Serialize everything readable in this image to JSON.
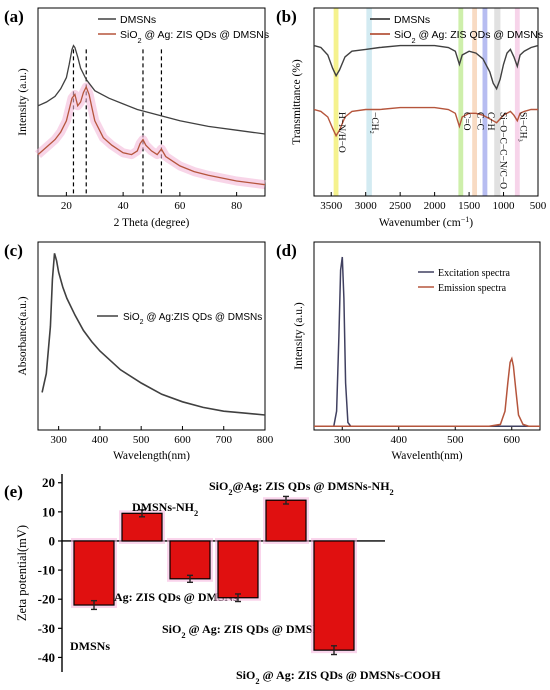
{
  "chart_data": [
    {
      "panel": "(a)",
      "type": "line",
      "title": "",
      "xlabel": "2 Theta (degree)",
      "ylabel": "Intensity (a.u.)",
      "xlim": [
        10,
        90
      ],
      "ylim": [
        0,
        1
      ],
      "xticks": [
        20,
        40,
        60,
        80
      ],
      "grid": false,
      "legend": "top-right",
      "dashed_lines_x": [
        22.5,
        27,
        47,
        53.5
      ],
      "series": [
        {
          "name": "DMSNs",
          "color": "#404040",
          "x": [
            10,
            13,
            16,
            18,
            20,
            21,
            22,
            22.5,
            23,
            24,
            25,
            27,
            30,
            35,
            40,
            45,
            50,
            55,
            60,
            70,
            80,
            90
          ],
          "y": [
            0.48,
            0.5,
            0.53,
            0.57,
            0.63,
            0.7,
            0.78,
            0.8,
            0.79,
            0.74,
            0.68,
            0.62,
            0.56,
            0.52,
            0.49,
            0.46,
            0.44,
            0.42,
            0.4,
            0.37,
            0.35,
            0.33
          ]
        },
        {
          "name": "SiO2 @ Ag: ZIS QDs @ DMSNs",
          "color": "#b5553c",
          "x": [
            10,
            13,
            16,
            18,
            20,
            21,
            22,
            23,
            24,
            25,
            26,
            27,
            28,
            29,
            30,
            33,
            36,
            40,
            43,
            45,
            46,
            47,
            48,
            50,
            52,
            53.5,
            55,
            58,
            60,
            65,
            70,
            80,
            90
          ],
          "y": [
            0.22,
            0.26,
            0.3,
            0.34,
            0.4,
            0.46,
            0.52,
            0.54,
            0.48,
            0.5,
            0.55,
            0.58,
            0.54,
            0.47,
            0.4,
            0.31,
            0.27,
            0.23,
            0.22,
            0.24,
            0.28,
            0.3,
            0.27,
            0.24,
            0.22,
            0.25,
            0.21,
            0.18,
            0.16,
            0.13,
            0.11,
            0.08,
            0.06
          ]
        }
      ]
    },
    {
      "panel": "(b)",
      "type": "line",
      "title": "",
      "xlabel": "Wavenumber (cm",
      "xlabel_sup": "−1",
      "xlabel_end": ")",
      "ylabel": "Transmittance (%)",
      "xlim": [
        3750,
        500
      ],
      "ylim": [
        0,
        1
      ],
      "xticks": [
        3500,
        3000,
        2500,
        2000,
        1500,
        1000,
        500
      ],
      "grid": false,
      "legend": "top-left",
      "bands": [
        {
          "center": 3430,
          "width": 70,
          "color": "#f3f07a",
          "label": "H−N/H−O"
        },
        {
          "center": 2950,
          "width": 80,
          "color": "#cbe8f0",
          "label": "−CH₂"
        },
        {
          "center": 1620,
          "width": 70,
          "color": "#c5ec9c",
          "label": "C=O"
        },
        {
          "center": 1420,
          "width": 70,
          "color": "#f7d5b8",
          "label": "C−C"
        },
        {
          "center": 1270,
          "width": 70,
          "color": "#aab2ee",
          "label": "C−H"
        },
        {
          "center": 1090,
          "width": 90,
          "color": "#dcdcdc",
          "label": "Si−O−C−C−N/C−O"
        },
        {
          "center": 800,
          "width": 70,
          "color": "#f6cde6",
          "label": "Si−CH₃"
        }
      ],
      "series": [
        {
          "name": "DMSNs",
          "color": "#404040",
          "x": [
            3750,
            3650,
            3550,
            3480,
            3430,
            3380,
            3300,
            3200,
            3000,
            2800,
            2500,
            2000,
            1800,
            1700,
            1640,
            1600,
            1500,
            1400,
            1300,
            1200,
            1150,
            1100,
            1050,
            1000,
            950,
            900,
            850,
            800,
            760,
            700,
            600,
            500
          ],
          "y": [
            0.8,
            0.79,
            0.75,
            0.68,
            0.64,
            0.67,
            0.74,
            0.77,
            0.78,
            0.79,
            0.8,
            0.8,
            0.79,
            0.77,
            0.7,
            0.75,
            0.77,
            0.76,
            0.73,
            0.66,
            0.6,
            0.57,
            0.62,
            0.7,
            0.76,
            0.78,
            0.74,
            0.69,
            0.75,
            0.77,
            0.79,
            0.8
          ]
        },
        {
          "name": "SiO2 @ Ag: ZIS QDs @ DMSNs",
          "color": "#b5553c",
          "x": [
            3750,
            3650,
            3550,
            3480,
            3430,
            3380,
            3300,
            3200,
            3000,
            2800,
            2500,
            2000,
            1800,
            1700,
            1640,
            1600,
            1500,
            1400,
            1300,
            1200,
            1150,
            1100,
            1050,
            1000,
            950,
            900,
            850,
            800,
            760,
            700,
            600,
            500
          ],
          "y": [
            0.46,
            0.45,
            0.42,
            0.36,
            0.32,
            0.35,
            0.42,
            0.45,
            0.46,
            0.46,
            0.47,
            0.47,
            0.46,
            0.44,
            0.37,
            0.42,
            0.44,
            0.44,
            0.43,
            0.41,
            0.4,
            0.39,
            0.41,
            0.43,
            0.44,
            0.45,
            0.43,
            0.4,
            0.44,
            0.45,
            0.46,
            0.46
          ]
        }
      ]
    },
    {
      "panel": "(c)",
      "type": "line",
      "title": "",
      "xlabel": "Wavelength(nm)",
      "ylabel": "Absorbance(a.u.)",
      "xlim": [
        250,
        800
      ],
      "ylim": [
        0,
        1
      ],
      "xticks": [
        300,
        400,
        500,
        600,
        700,
        800
      ],
      "grid": false,
      "legend": "middle-right",
      "series": [
        {
          "name": "SiO2 @ Ag:ZIS QDs @ DMSNs",
          "color": "#404040",
          "x": [
            260,
            270,
            280,
            285,
            290,
            295,
            300,
            310,
            320,
            340,
            360,
            380,
            400,
            450,
            500,
            550,
            600,
            650,
            700,
            750,
            800
          ],
          "y": [
            0.2,
            0.3,
            0.55,
            0.8,
            0.94,
            0.9,
            0.84,
            0.76,
            0.7,
            0.61,
            0.53,
            0.47,
            0.42,
            0.32,
            0.25,
            0.19,
            0.15,
            0.12,
            0.1,
            0.09,
            0.08
          ]
        }
      ]
    },
    {
      "panel": "(d)",
      "type": "line",
      "title": "",
      "xlabel": "Wavelenth(nm)",
      "ylabel": "Intensity (a.u.)",
      "xlim": [
        250,
        650
      ],
      "ylim": [
        0,
        1
      ],
      "xticks": [
        300,
        400,
        500,
        600
      ],
      "grid": false,
      "legend": "top-right",
      "series": [
        {
          "name": "Excitation spectra",
          "color": "#404060",
          "x": [
            250,
            285,
            290,
            294,
            297,
            300,
            303,
            306,
            310,
            315,
            350,
            400,
            450,
            500,
            550,
            570,
            580,
            650
          ],
          "y": [
            0.02,
            0.02,
            0.1,
            0.5,
            0.85,
            0.92,
            0.7,
            0.25,
            0.04,
            0.02,
            0.02,
            0.02,
            0.02,
            0.02,
            0.02,
            0.02,
            0.02,
            0.02
          ]
        },
        {
          "name": "Emission spectra",
          "color": "#b5553c",
          "x": [
            250,
            300,
            400,
            500,
            560,
            580,
            588,
            593,
            597,
            600,
            603,
            607,
            612,
            620,
            630,
            650
          ],
          "y": [
            0.02,
            0.02,
            0.02,
            0.02,
            0.02,
            0.03,
            0.1,
            0.25,
            0.36,
            0.38,
            0.34,
            0.22,
            0.08,
            0.03,
            0.02,
            0.02
          ]
        }
      ]
    },
    {
      "panel": "(e)",
      "type": "bar",
      "title": "",
      "xlabel": "",
      "ylabel": "Zeta potential(mV)",
      "ylim": [
        -45,
        23
      ],
      "yticks": [
        20,
        10,
        0,
        -10,
        -20,
        -30,
        -40
      ],
      "grid": false,
      "bar_color": "#e01010",
      "categories": [
        {
          "label": "DMSNs",
          "value": -22,
          "error": 1.5
        },
        {
          "label": "DMSNs-NH",
          "label_sub": "2",
          "value": 9.5,
          "error": 1.2
        },
        {
          "label": "Ag: ZIS QDs @ DMSNs",
          "value": -13,
          "error": 1.2
        },
        {
          "label": "SiO",
          "label_sub": "2",
          "label_end": " @ Ag: ZIS QDs @ DMSNs",
          "value": -19.5,
          "error": 1.3
        },
        {
          "label": "SiO",
          "label_sub": "2",
          "label_end": "@Ag: ZIS QDs @ DMSNs-NH",
          "label_sub2": "2",
          "value": 14,
          "error": 1.3
        },
        {
          "label": "SiO",
          "label_sub": "2",
          "label_end": " @ Ag: ZIS QDs @ DMSNs-COOH",
          "value": -37.5,
          "error": 1.5
        }
      ]
    }
  ]
}
